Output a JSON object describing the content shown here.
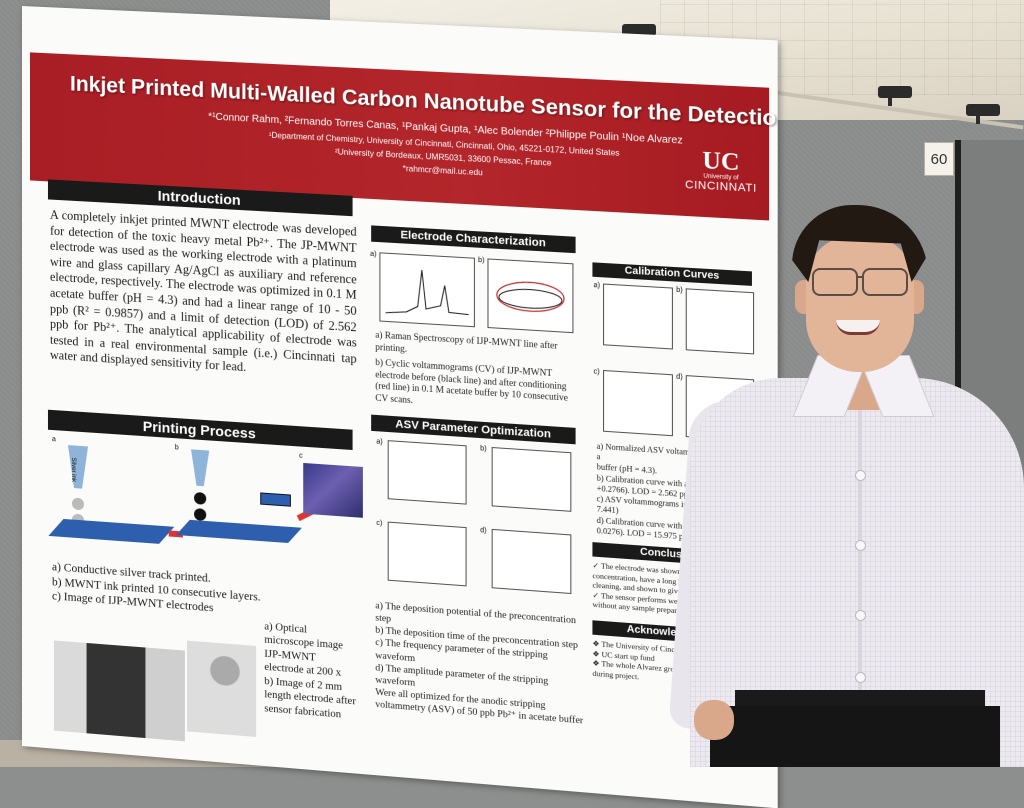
{
  "scene": {
    "booth_number": "60"
  },
  "poster": {
    "title": "Inkjet Printed Multi-Walled Carbon Nanotube Sensor for the Detection of Lead",
    "authors": "*¹Connor Rahm, ²Fernando Torres Canas, ¹Pankaj Gupta, ¹Alec Bolender ²Philippe Poulin ¹Noe Alvarez",
    "affiliation_1": "¹Department of Chemistry, University of Cincinnati, Cincinnati, Ohio, 45221-0172, United States",
    "affiliation_2": "²University of Bordeaux, UMR5031, 33600 Pessac, France",
    "email": "*rahmcr@mail.uc.edu",
    "logo": {
      "mark": "UC",
      "line1": "University of",
      "line2": "CINCINNATI"
    },
    "introduction": {
      "heading": "Introduction",
      "text": "A completely inkjet printed MWNT electrode was developed for detection of the toxic heavy metal Pb²⁺. The JP-MWNT electrode was used as the working electrode with a platinum wire and glass capillary Ag/AgCl as auxiliary and reference electrode, respectively. The electrode was optimized in 0.1 M acetate buffer (pH = 4.3) and had a linear range of 10 - 50 ppb (R² = 0.9857) and a limit of detection (LOD) of 2.562 ppb for Pb²⁺. The analytical applicability of electrode was tested in a real environmental sample (i.e.) Cincinnati tap water and displayed sensitivity for lead."
    },
    "printing": {
      "heading": "Printing Process",
      "panel_labels": [
        "a",
        "b",
        "c"
      ],
      "ink_label": "Silver ink",
      "captions": [
        "a)  Conductive silver track printed.",
        "b)  MWNT ink printed 10 consecutive layers.",
        "c)  Image of IJP-MWNT electrodes"
      ],
      "micro_captions": [
        "a)  Optical microscope image IJP-MWNT electrode at 200 x",
        "b)  Image of 2 mm length electrode after sensor fabrication"
      ]
    },
    "electrode": {
      "heading": "Electrode Characterization",
      "panel_labels": [
        "a)",
        "b)"
      ],
      "captions": [
        "a)  Raman Spectroscopy of IJP-MWNT line after printing.",
        "b)  Cyclic voltammograms (CV) of IJP-MWNT electrode before (black line) and after conditioning (red line) in 0.1 M acetate buffer by 10 consecutive CV scans."
      ]
    },
    "asv": {
      "heading": "ASV Parameter Optimization",
      "panel_labels": [
        "a)",
        "b)",
        "c)",
        "d)"
      ],
      "captions": [
        "a)  The deposition potential of the preconcentration step",
        "b)  The deposition time of the preconcentration step",
        "c)  The frequency parameter of the stripping waveform",
        "d)  The amplitude parameter of the stripping waveform"
      ],
      "footer": "Were all optimized for the anodic stripping voltammetry (ASV) of 50 ppb Pb²⁺ in acetate buffer"
    },
    "calibration": {
      "heading": "Calibration Curves",
      "panel_labels": [
        "a)",
        "b)",
        "c)",
        "d)"
      ],
      "captions": [
        "a)  Normalized ASV voltammograms in 0.1 M a",
        "buffer (pH = 4.3).",
        "b)  Calibration curve with a linear fit (y = 0.0",
        "+0.2766). LOD = 2.562 ppb Pb²⁺",
        "c)  ASV voltammograms in Cincinnati tap",
        "7.441)",
        "d)  Calibration curve with a linear fit (y =",
        "0.0276). LOD = 15.975 ppb Pb²⁺"
      ]
    },
    "conclusions": {
      "heading": "Conclusions",
      "items": [
        "✓ The electrode was shown to be sensitiv",
        "concentration, have a long lifetime of u",
        "cleaning, and shown to give reproduci",
        "✓ The sensor performs well in Cincinna",
        "without any sample preparations or d"
      ]
    },
    "acknowledgements": {
      "heading": "Acknowledgemen",
      "items": [
        "❖ The University of Cincinnati Chemi",
        "❖ UC start up fund",
        "❖ The whole Alvarez group for support a",
        "during project."
      ]
    }
  }
}
